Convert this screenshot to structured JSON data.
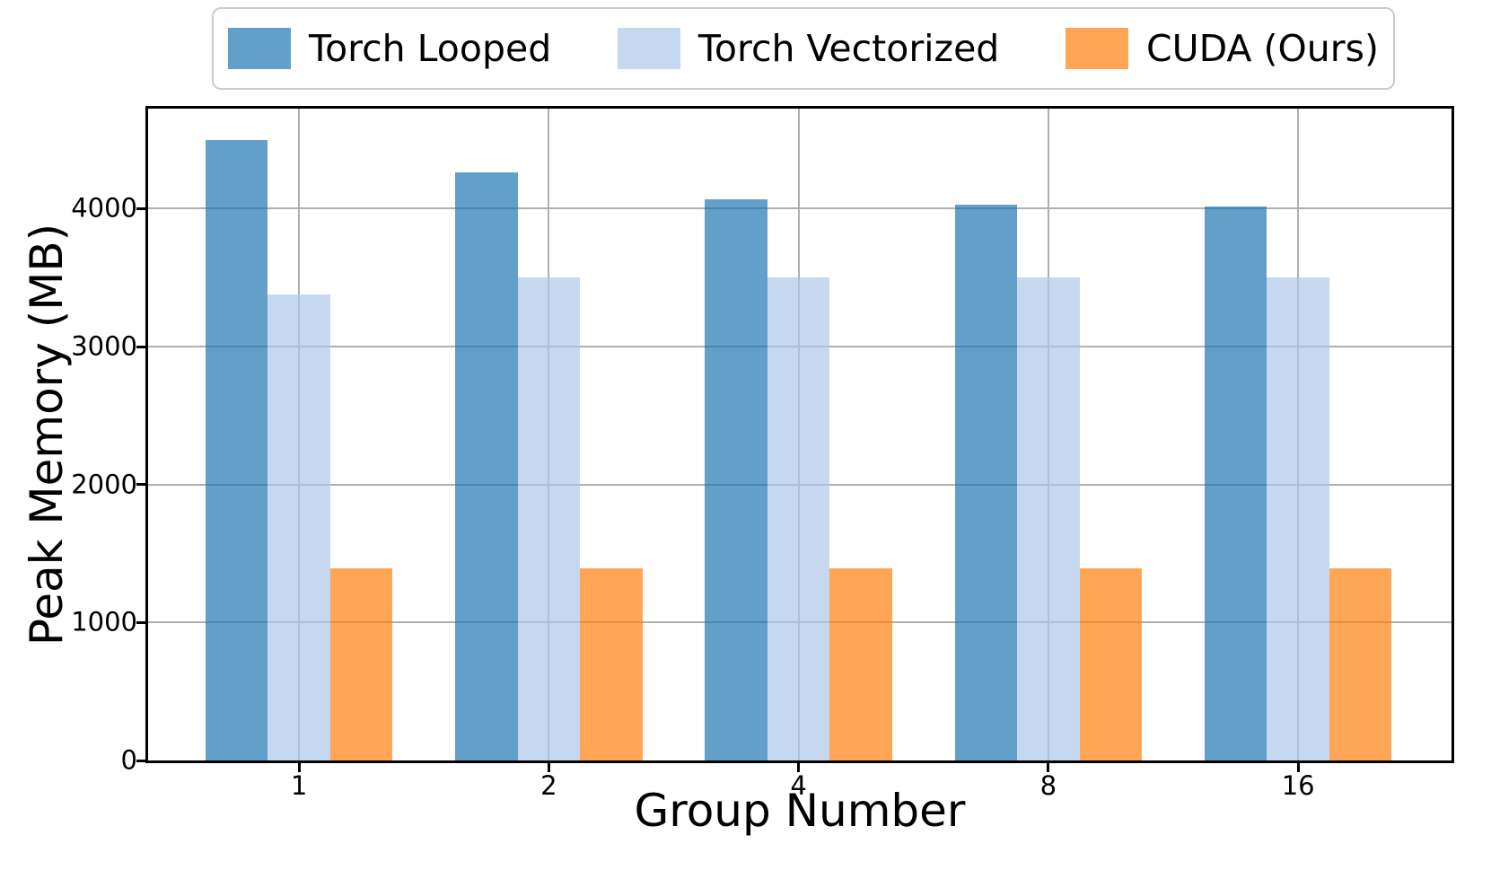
{
  "chart_data": {
    "type": "bar",
    "title": "",
    "xlabel": "Group Number",
    "ylabel": "Peak Memory (MB)",
    "categories": [
      "1",
      "2",
      "4",
      "8",
      "16"
    ],
    "series": [
      {
        "name": "Torch Looped",
        "color": "#1f77b4",
        "alpha": 0.7,
        "rendered_color": "#619EC9",
        "values": [
          4500,
          4260,
          4070,
          4030,
          4015
        ]
      },
      {
        "name": "Torch Vectorized",
        "color": "#aec7e8",
        "alpha": 0.7,
        "rendered_color": "#C5D6ED",
        "values": [
          3380,
          3500,
          3500,
          3500,
          3500
        ]
      },
      {
        "name": "CUDA (Ours)",
        "color": "#ff7f0e",
        "alpha": 0.7,
        "rendered_color": "#FFA754",
        "values": [
          1390,
          1390,
          1390,
          1390,
          1390
        ]
      }
    ],
    "yticks": [
      0,
      1000,
      2000,
      3000,
      4000
    ],
    "ylim": [
      0,
      4725
    ],
    "grid": true,
    "grid_color": "#b0b0b0",
    "axis_color": "#000000",
    "legend_position": "top-center"
  }
}
